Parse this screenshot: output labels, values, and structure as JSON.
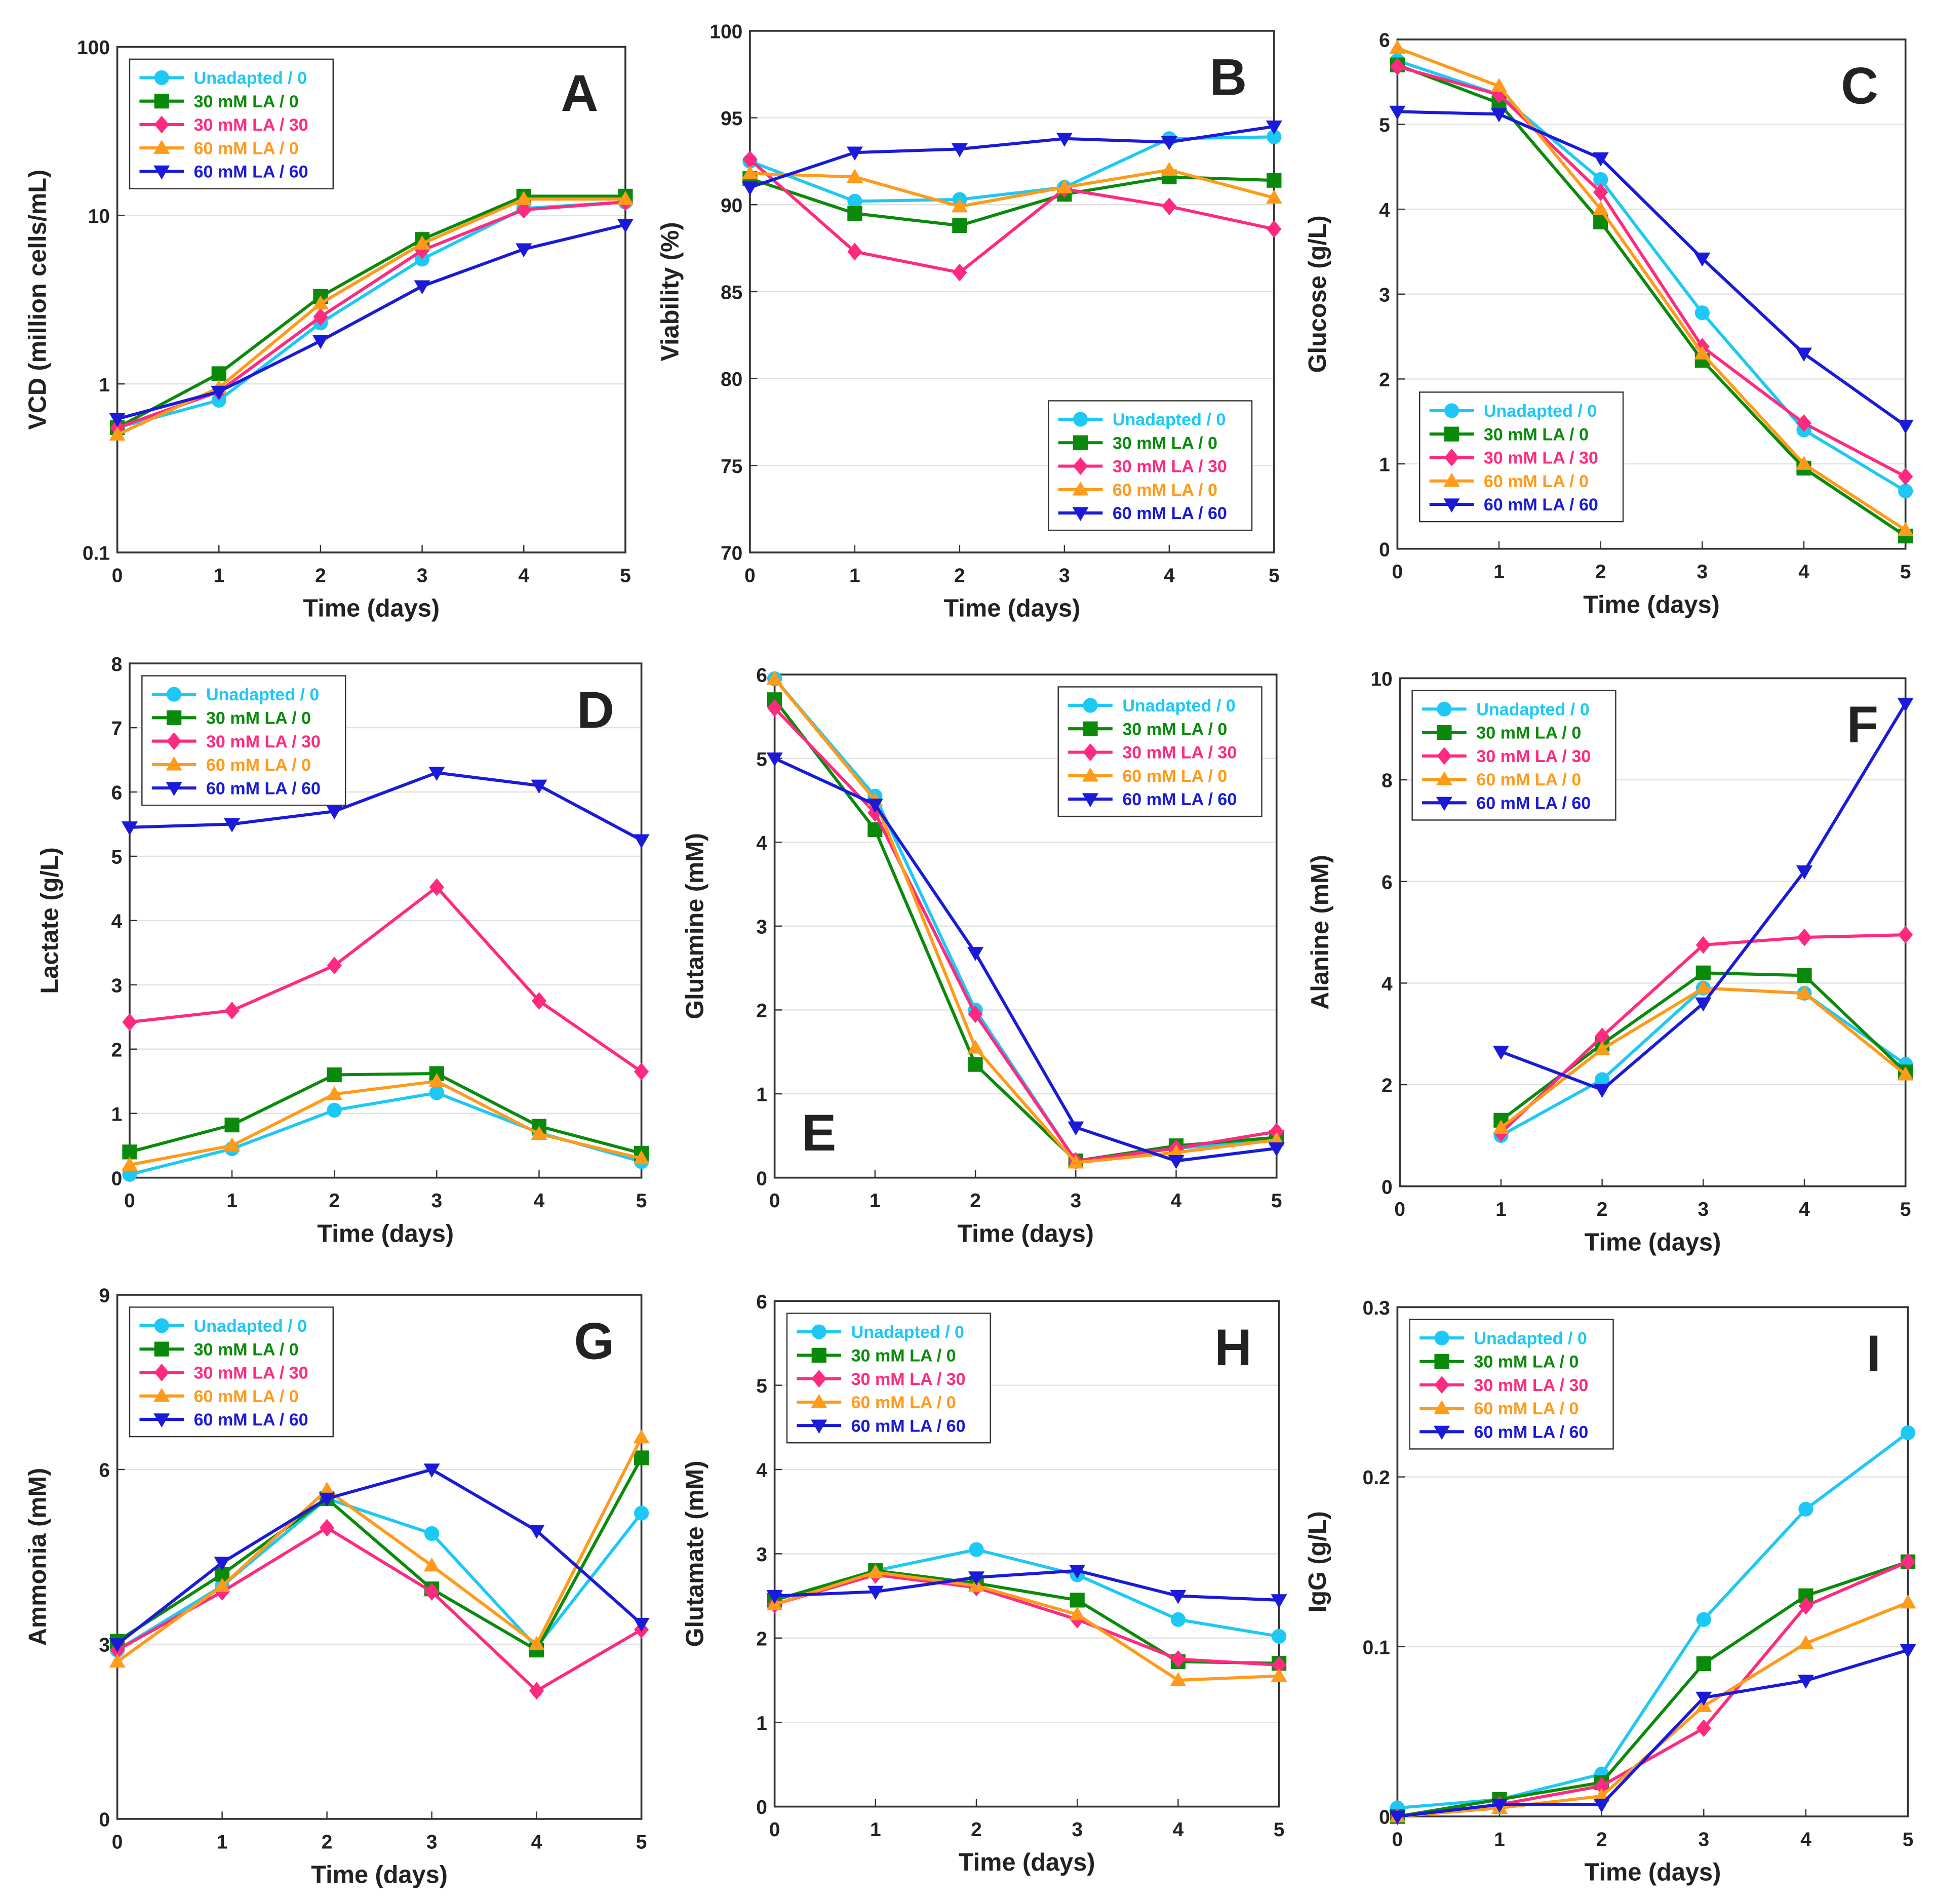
{
  "colors": {
    "Unadapted / 0": "#1ec8f5",
    "30 mM LA / 0": "#0a8a0a",
    "30 mM LA / 30": "#ff2a7f",
    "60 mM LA / 0": "#ff9a1a",
    "60 mM LA / 60": "#1a1ad8"
  },
  "markers": {
    "Unadapted / 0": "circle",
    "30 mM LA / 0": "square",
    "30 mM LA / 30": "diamond",
    "60 mM LA / 0": "triangle-up",
    "60 mM LA / 60": "triangle-down"
  },
  "chart_data": [
    {
      "panel": "A",
      "type": "line",
      "xlabel": "Time (days)",
      "ylabel": "VCD (million cells/mL)",
      "log_y": true,
      "ylim": [
        0.1,
        100
      ],
      "yticks": [
        "0.1",
        "1",
        "10",
        "100"
      ],
      "xlim": [
        0,
        5
      ],
      "xticks": [
        "0",
        "1",
        "2",
        "3",
        "4",
        "5"
      ],
      "legend": "top-left",
      "letter_position": "top-right",
      "grid": true,
      "x": [
        0,
        1,
        2,
        3,
        4,
        5
      ],
      "series": [
        {
          "name": "Unadapted / 0",
          "values": [
            0.55,
            0.8,
            2.3,
            5.5,
            11,
            12
          ]
        },
        {
          "name": "30 mM LA / 0",
          "values": [
            0.55,
            1.15,
            3.3,
            7.2,
            13,
            13
          ]
        },
        {
          "name": "30 mM LA / 30",
          "values": [
            0.55,
            0.9,
            2.5,
            6.2,
            10.8,
            12
          ]
        },
        {
          "name": "60 mM LA / 0",
          "values": [
            0.5,
            0.95,
            3.0,
            6.8,
            12.5,
            12.5
          ]
        },
        {
          "name": "60 mM LA / 60",
          "values": [
            0.62,
            0.9,
            1.8,
            3.8,
            6.3,
            8.8
          ]
        }
      ]
    },
    {
      "panel": "B",
      "type": "line",
      "xlabel": "Time (days)",
      "ylabel": "Viability (%)",
      "log_y": false,
      "ylim": [
        70,
        100
      ],
      "yticks": [
        "70",
        "75",
        "80",
        "85",
        "90",
        "95",
        "100"
      ],
      "xlim": [
        0,
        5
      ],
      "xticks": [
        "0",
        "1",
        "2",
        "3",
        "4",
        "5"
      ],
      "legend": "bottom-right",
      "letter_position": "top-right",
      "grid": true,
      "x": [
        0,
        1,
        2,
        3,
        4,
        5
      ],
      "series": [
        {
          "name": "Unadapted / 0",
          "values": [
            92.5,
            90.2,
            90.3,
            91,
            93.8,
            93.9
          ]
        },
        {
          "name": "30 mM LA / 0",
          "values": [
            91.5,
            89.5,
            88.8,
            90.6,
            91.6,
            91.4
          ]
        },
        {
          "name": "30 mM LA / 30",
          "values": [
            92.6,
            87.3,
            86.1,
            90.9,
            89.9,
            88.6
          ]
        },
        {
          "name": "60 mM LA / 0",
          "values": [
            91.8,
            91.6,
            89.9,
            91.0,
            92.0,
            90.4
          ]
        },
        {
          "name": "60 mM LA / 60",
          "values": [
            91,
            93,
            93.2,
            93.8,
            93.6,
            94.5
          ]
        }
      ]
    },
    {
      "panel": "C",
      "type": "line",
      "xlabel": "Time (days)",
      "ylabel": "Glucose (g/L)",
      "log_y": false,
      "ylim": [
        0,
        6
      ],
      "yticks": [
        "0",
        "1",
        "2",
        "3",
        "4",
        "5",
        "6"
      ],
      "xlim": [
        0,
        5
      ],
      "xticks": [
        "0",
        "1",
        "2",
        "3",
        "4",
        "5"
      ],
      "legend": "bottom-left",
      "letter_position": "top-right",
      "grid": true,
      "x": [
        0,
        1,
        2,
        3,
        4,
        5
      ],
      "series": [
        {
          "name": "Unadapted / 0",
          "values": [
            5.75,
            5.35,
            4.35,
            2.78,
            1.4,
            0.68
          ]
        },
        {
          "name": "30 mM LA / 0",
          "values": [
            5.7,
            5.25,
            3.85,
            2.22,
            0.95,
            0.15
          ]
        },
        {
          "name": "30 mM LA / 30",
          "values": [
            5.68,
            5.35,
            4.2,
            2.38,
            1.48,
            0.85
          ]
        },
        {
          "name": "60 mM LA / 0",
          "values": [
            5.9,
            5.45,
            4.0,
            2.3,
            1.0,
            0.22
          ]
        },
        {
          "name": "60 mM LA / 60",
          "values": [
            5.15,
            5.12,
            4.6,
            3.42,
            2.3,
            1.45
          ]
        }
      ]
    },
    {
      "panel": "D",
      "type": "line",
      "xlabel": "Time (days)",
      "ylabel": "Lactate (g/L)",
      "log_y": false,
      "ylim": [
        0,
        8
      ],
      "yticks": [
        "0",
        "1",
        "2",
        "3",
        "4",
        "5",
        "6",
        "7",
        "8"
      ],
      "xlim": [
        0,
        5
      ],
      "xticks": [
        "0",
        "1",
        "2",
        "3",
        "4",
        "5"
      ],
      "legend": "top-left",
      "letter_position": "top-right",
      "grid": true,
      "x": [
        0,
        1,
        2,
        3,
        4,
        5
      ],
      "series": [
        {
          "name": "Unadapted / 0",
          "values": [
            0.05,
            0.45,
            1.05,
            1.32,
            0.7,
            0.25
          ]
        },
        {
          "name": "30 mM LA / 0",
          "values": [
            0.4,
            0.82,
            1.6,
            1.62,
            0.8,
            0.38
          ]
        },
        {
          "name": "30 mM LA / 30",
          "values": [
            2.42,
            2.6,
            3.3,
            4.52,
            2.75,
            1.65
          ]
        },
        {
          "name": "60 mM LA / 0",
          "values": [
            0.2,
            0.5,
            1.3,
            1.5,
            0.68,
            0.3
          ]
        },
        {
          "name": "60 mM LA / 60",
          "values": [
            5.45,
            5.5,
            5.7,
            6.3,
            6.1,
            5.25
          ]
        }
      ]
    },
    {
      "panel": "E",
      "type": "line",
      "xlabel": "Time (days)",
      "ylabel": "Glutamine (mM)",
      "log_y": false,
      "ylim": [
        0,
        6
      ],
      "yticks": [
        "0",
        "1",
        "2",
        "3",
        "4",
        "5",
        "6"
      ],
      "xlim": [
        0,
        5
      ],
      "xticks": [
        "0",
        "1",
        "2",
        "3",
        "4",
        "5"
      ],
      "legend": "top-right",
      "letter_position": "bottom-left",
      "grid": true,
      "x": [
        0,
        1,
        2,
        3,
        4,
        5
      ],
      "series": [
        {
          "name": "Unadapted / 0",
          "values": [
            5.95,
            4.55,
            2.0,
            0.2,
            0.35,
            0.45
          ]
        },
        {
          "name": "30 mM LA / 0",
          "values": [
            5.7,
            4.15,
            1.35,
            0.2,
            0.38,
            0.48
          ]
        },
        {
          "name": "30 mM LA / 30",
          "values": [
            5.6,
            4.35,
            1.95,
            0.2,
            0.35,
            0.55
          ]
        },
        {
          "name": "60 mM LA / 0",
          "values": [
            5.95,
            4.5,
            1.55,
            0.18,
            0.3,
            0.45
          ]
        },
        {
          "name": "60 mM LA / 60",
          "values": [
            5.0,
            4.45,
            2.68,
            0.6,
            0.2,
            0.35
          ]
        }
      ]
    },
    {
      "panel": "F",
      "type": "line",
      "xlabel": "Time (days)",
      "ylabel": "Alanine (mM)",
      "log_y": false,
      "ylim": [
        0,
        10
      ],
      "yticks": [
        "0",
        "2",
        "4",
        "6",
        "8",
        "10"
      ],
      "xlim": [
        0,
        5
      ],
      "xticks": [
        "0",
        "1",
        "2",
        "3",
        "4",
        "5"
      ],
      "legend": "top-left",
      "letter_position": "top-right",
      "grid": true,
      "x": [
        1,
        2,
        3,
        4,
        5
      ],
      "series": [
        {
          "name": "Unadapted / 0",
          "values": [
            1.0,
            2.1,
            3.9,
            3.8,
            2.4
          ]
        },
        {
          "name": "30 mM LA / 0",
          "values": [
            1.3,
            2.8,
            4.2,
            4.15,
            2.25
          ]
        },
        {
          "name": "30 mM LA / 30",
          "values": [
            1.05,
            2.95,
            4.75,
            4.9,
            4.95
          ]
        },
        {
          "name": "60 mM LA / 0",
          "values": [
            1.15,
            2.7,
            3.9,
            3.8,
            2.2
          ]
        },
        {
          "name": "60 mM LA / 60",
          "values": [
            2.65,
            1.9,
            3.6,
            6.2,
            9.5
          ]
        }
      ]
    },
    {
      "panel": "G",
      "type": "line",
      "xlabel": "Time (days)",
      "ylabel": "Ammonia (mM)",
      "log_y": false,
      "ylim": [
        0,
        9
      ],
      "yticks": [
        "0",
        "3",
        "6",
        "9"
      ],
      "xlim": [
        0,
        5
      ],
      "xticks": [
        "0",
        "1",
        "2",
        "3",
        "4",
        "5"
      ],
      "legend": "top-left",
      "letter_position": "top-right",
      "grid": true,
      "x": [
        0,
        1,
        2,
        3,
        4,
        5
      ],
      "series": [
        {
          "name": "Unadapted / 0",
          "values": [
            2.9,
            4.0,
            5.5,
            4.9,
            2.95,
            5.25
          ]
        },
        {
          "name": "30 mM LA / 0",
          "values": [
            3.05,
            4.2,
            5.5,
            3.95,
            2.9,
            6.2
          ]
        },
        {
          "name": "30 mM LA / 30",
          "values": [
            2.9,
            3.9,
            5.0,
            3.9,
            2.2,
            3.25
          ]
        },
        {
          "name": "60 mM LA / 0",
          "values": [
            2.7,
            4.0,
            5.65,
            4.35,
            3.0,
            6.55
          ]
        },
        {
          "name": "60 mM LA / 60",
          "values": [
            3.0,
            4.4,
            5.5,
            6.0,
            4.95,
            3.35
          ]
        }
      ]
    },
    {
      "panel": "H",
      "type": "line",
      "xlabel": "Time (days)",
      "ylabel": "Glutamate (mM)",
      "log_y": false,
      "ylim": [
        0,
        6
      ],
      "yticks": [
        "0",
        "1",
        "2",
        "3",
        "4",
        "5",
        "6"
      ],
      "xlim": [
        0,
        5
      ],
      "xticks": [
        "0",
        "1",
        "2",
        "3",
        "4",
        "5"
      ],
      "legend": "top-left",
      "letter_position": "top-right",
      "grid": true,
      "x": [
        0,
        1,
        2,
        3,
        4,
        5
      ],
      "series": [
        {
          "name": "Unadapted / 0",
          "values": [
            2.45,
            2.8,
            3.05,
            2.75,
            2.22,
            2.02
          ]
        },
        {
          "name": "30 mM LA / 0",
          "values": [
            2.45,
            2.8,
            2.65,
            2.45,
            1.72,
            1.7
          ]
        },
        {
          "name": "30 mM LA / 30",
          "values": [
            2.4,
            2.75,
            2.6,
            2.22,
            1.75,
            1.68
          ]
        },
        {
          "name": "60 mM LA / 0",
          "values": [
            2.4,
            2.78,
            2.62,
            2.28,
            1.5,
            1.55
          ]
        },
        {
          "name": "60 mM LA / 60",
          "values": [
            2.5,
            2.55,
            2.72,
            2.8,
            2.5,
            2.45
          ]
        }
      ]
    },
    {
      "panel": "I",
      "type": "line",
      "xlabel": "Time (days)",
      "ylabel": "IgG (g/L)",
      "log_y": false,
      "ylim": [
        0,
        0.3
      ],
      "yticks": [
        "0",
        "0.1",
        "0.2",
        "0.3"
      ],
      "xlim": [
        0,
        5
      ],
      "xticks": [
        "0",
        "1",
        "2",
        "3",
        "4",
        "5"
      ],
      "legend": "top-left",
      "letter_position": "top-right",
      "grid": true,
      "x": [
        0,
        1,
        2,
        3,
        4,
        5
      ],
      "series": [
        {
          "name": "Unadapted / 0",
          "values": [
            0.005,
            0.01,
            0.025,
            0.116,
            0.181,
            0.226
          ]
        },
        {
          "name": "30 mM LA / 0",
          "values": [
            0,
            0.01,
            0.02,
            0.09,
            0.13,
            0.15
          ]
        },
        {
          "name": "30 mM LA / 30",
          "values": [
            0,
            0.007,
            0.018,
            0.052,
            0.124,
            0.15
          ]
        },
        {
          "name": "60 mM LA / 0",
          "values": [
            0,
            0.005,
            0.012,
            0.065,
            0.102,
            0.126
          ]
        },
        {
          "name": "60 mM LA / 60",
          "values": [
            0,
            0.007,
            0.007,
            0.07,
            0.08,
            0.098
          ]
        }
      ]
    }
  ]
}
